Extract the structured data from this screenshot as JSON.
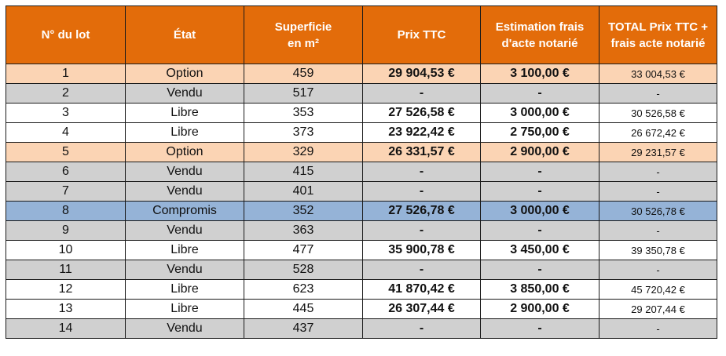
{
  "headers": [
    "N° du lot",
    "État",
    "Superficie\nen m²",
    "Prix TTC",
    "Estimation frais\nd'acte notarié",
    "TOTAL Prix TTC +\nfrais acte notarié"
  ],
  "colors": {
    "header": "#e36c0a",
    "option": "#fbd4b4",
    "vendu": "#d0d0d0",
    "libre": "#ffffff",
    "compromis": "#95b3d7"
  },
  "rows": [
    {
      "lot": "1",
      "etat": "Option",
      "superficie": "459",
      "prix": "29 904,53 €",
      "frais": "3 100,00 €",
      "total": "33 004,53 €"
    },
    {
      "lot": "2",
      "etat": "Vendu",
      "superficie": "517",
      "prix": "-",
      "frais": "-",
      "total": "-"
    },
    {
      "lot": "3",
      "etat": "Libre",
      "superficie": "353",
      "prix": "27 526,58 €",
      "frais": "3 000,00 €",
      "total": "30 526,58 €"
    },
    {
      "lot": "4",
      "etat": "Libre",
      "superficie": "373",
      "prix": "23 922,42 €",
      "frais": "2 750,00 €",
      "total": "26 672,42 €"
    },
    {
      "lot": "5",
      "etat": "Option",
      "superficie": "329",
      "prix": "26 331,57 €",
      "frais": "2 900,00 €",
      "total": "29 231,57 €"
    },
    {
      "lot": "6",
      "etat": "Vendu",
      "superficie": "415",
      "prix": "-",
      "frais": "-",
      "total": "-"
    },
    {
      "lot": "7",
      "etat": "Vendu",
      "superficie": "401",
      "prix": "-",
      "frais": "-",
      "total": "-"
    },
    {
      "lot": "8",
      "etat": "Compromis",
      "superficie": "352",
      "prix": "27 526,78 €",
      "frais": "3 000,00 €",
      "total": "30 526,78 €"
    },
    {
      "lot": "9",
      "etat": "Vendu",
      "superficie": "363",
      "prix": "-",
      "frais": "-",
      "total": "-"
    },
    {
      "lot": "10",
      "etat": "Libre",
      "superficie": "477",
      "prix": "35 900,78 €",
      "frais": "3 450,00 €",
      "total": "39 350,78 €"
    },
    {
      "lot": "11",
      "etat": "Vendu",
      "superficie": "528",
      "prix": "-",
      "frais": "-",
      "total": "-"
    },
    {
      "lot": "12",
      "etat": "Libre",
      "superficie": "623",
      "prix": "41 870,42 €",
      "frais": "3 850,00 €",
      "total": "45 720,42 €"
    },
    {
      "lot": "13",
      "etat": "Libre",
      "superficie": "445",
      "prix": "26 307,44 €",
      "frais": "2 900,00 €",
      "total": "29 207,44 €"
    },
    {
      "lot": "14",
      "etat": "Vendu",
      "superficie": "437",
      "prix": "-",
      "frais": "-",
      "total": "-"
    }
  ]
}
